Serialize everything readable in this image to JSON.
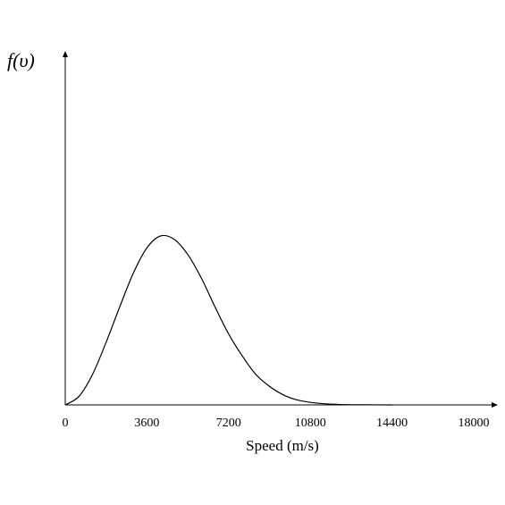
{
  "chart_data": {
    "type": "line",
    "title": "",
    "xlabel": "Speed (m/s)",
    "ylabel": "f(υ)",
    "xlim": [
      0,
      20000
    ],
    "x_ticks": [
      0,
      3600,
      7200,
      10800,
      14400,
      18000
    ],
    "y_ticks": [],
    "grid": false,
    "legend": "none",
    "series": [
      {
        "x": [
          0,
          600,
          1200,
          1800,
          2400,
          3000,
          3600,
          4200,
          4800,
          5400,
          6000,
          6600,
          7200,
          7800,
          8400,
          9000,
          9600,
          10200,
          10800,
          11400,
          12000,
          12600,
          13200,
          14400
        ],
        "y": [
          0,
          0.05,
          0.18,
          0.37,
          0.58,
          0.78,
          0.93,
          1.0,
          0.98,
          0.89,
          0.75,
          0.58,
          0.42,
          0.29,
          0.18,
          0.11,
          0.06,
          0.03,
          0.015,
          0.007,
          0.003,
          0.001,
          0.0005,
          0
        ]
      }
    ]
  }
}
